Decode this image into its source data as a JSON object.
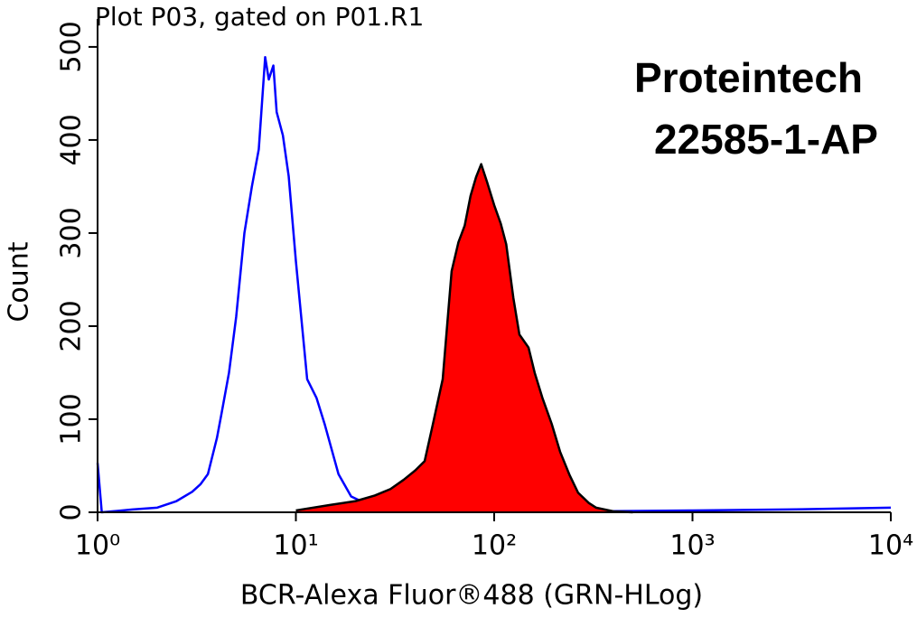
{
  "chart_data": {
    "type": "histogram",
    "title": "Plot P03, gated on P01.R1",
    "annotations": [
      "Proteintech",
      "22585-1-AP"
    ],
    "xlabel": "BCR-Alexa Fluor®488 (GRN-HLog)",
    "ylabel": "Count",
    "xscale": "log",
    "xlim": [
      1,
      10000
    ],
    "xticks": [
      {
        "value": 1,
        "label": "10⁰"
      },
      {
        "value": 10,
        "label": "10¹"
      },
      {
        "value": 100,
        "label": "10²"
      },
      {
        "value": 1000,
        "label": "10³"
      },
      {
        "value": 10000,
        "label": "10⁴"
      }
    ],
    "ylim": [
      0,
      530
    ],
    "yticks": [
      0,
      100,
      200,
      300,
      400,
      500
    ],
    "series": [
      {
        "color": "#0000ff",
        "fill": "none",
        "x": [
          1.0,
          1.05,
          1.5,
          2,
          2.5,
          3,
          3.3,
          3.6,
          4,
          4.2,
          4.6,
          5,
          5.5,
          6,
          6.5,
          7,
          7.3,
          7.7,
          8,
          8.6,
          9.2,
          10,
          11.4,
          12.7,
          14,
          16.4,
          19,
          25,
          30,
          50,
          100,
          300,
          1000,
          3000,
          10000
        ],
        "values": [
          53,
          0,
          3,
          5,
          12,
          22,
          30,
          41,
          80,
          104,
          150,
          210,
          300,
          350,
          390,
          489,
          465,
          480,
          430,
          405,
          361,
          270,
          143,
          123,
          94,
          41,
          17,
          5,
          3,
          2,
          2,
          1,
          2,
          3,
          5
        ]
      },
      {
        "color": "#000000",
        "fill": "#ff0000",
        "x": [
          10,
          15,
          20,
          25,
          30,
          35,
          40,
          44.6,
          49,
          55,
          61,
          66,
          71,
          76,
          81,
          86,
          92,
          100,
          108,
          115,
          125,
          134,
          149,
          160,
          175,
          195,
          215,
          240,
          265,
          300,
          326,
          400,
          500
        ],
        "values": [
          2,
          8,
          12,
          18,
          25,
          35,
          45,
          55,
          94,
          143,
          259,
          290,
          308,
          340,
          360,
          374,
          355,
          330,
          310,
          288,
          230,
          191,
          177,
          150,
          123,
          95,
          65,
          40,
          21,
          10,
          5,
          1,
          0
        ]
      }
    ]
  }
}
